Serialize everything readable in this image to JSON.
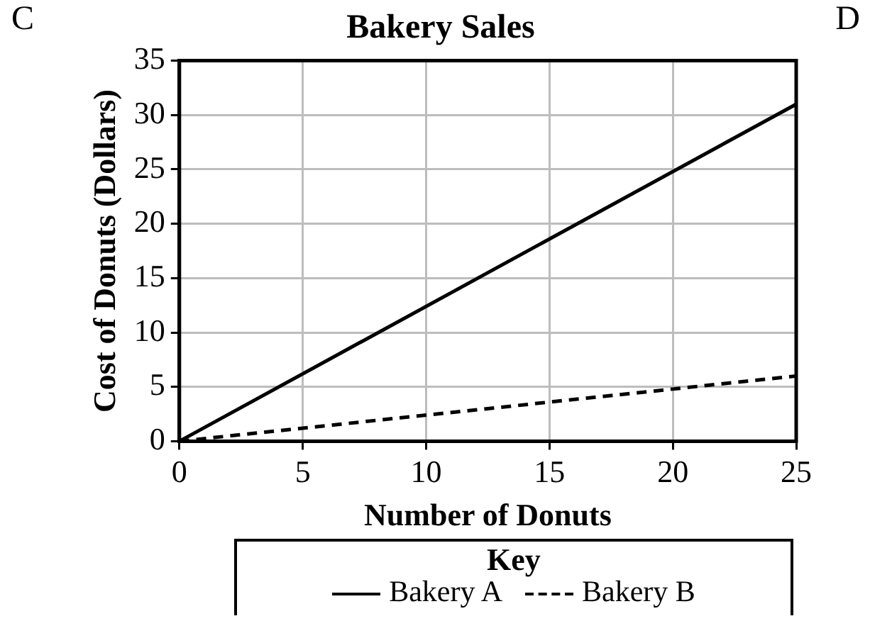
{
  "chart_data": {
    "type": "line",
    "title": "Bakery Sales",
    "xlabel": "Number of Donuts",
    "ylabel": "Cost of Donuts (Dollars)",
    "legend_title": "Key",
    "legend": "bottom",
    "grid": true,
    "marker": "none",
    "xlim": [
      0,
      25
    ],
    "xticks": [
      0,
      5,
      10,
      15,
      20,
      25
    ],
    "ylim": [
      0,
      35
    ],
    "yticks": [
      0,
      5,
      10,
      15,
      20,
      25,
      30,
      35
    ],
    "annotations": [
      "C",
      "D"
    ],
    "x": [
      0,
      25
    ],
    "series": [
      {
        "name": "Bakery A",
        "color": "#000000",
        "line_style": "solid",
        "values": [
          0,
          31
        ]
      },
      {
        "name": "Bakery B",
        "color": "#000000",
        "line_style": "dashed",
        "values": [
          0,
          6
        ]
      }
    ]
  }
}
